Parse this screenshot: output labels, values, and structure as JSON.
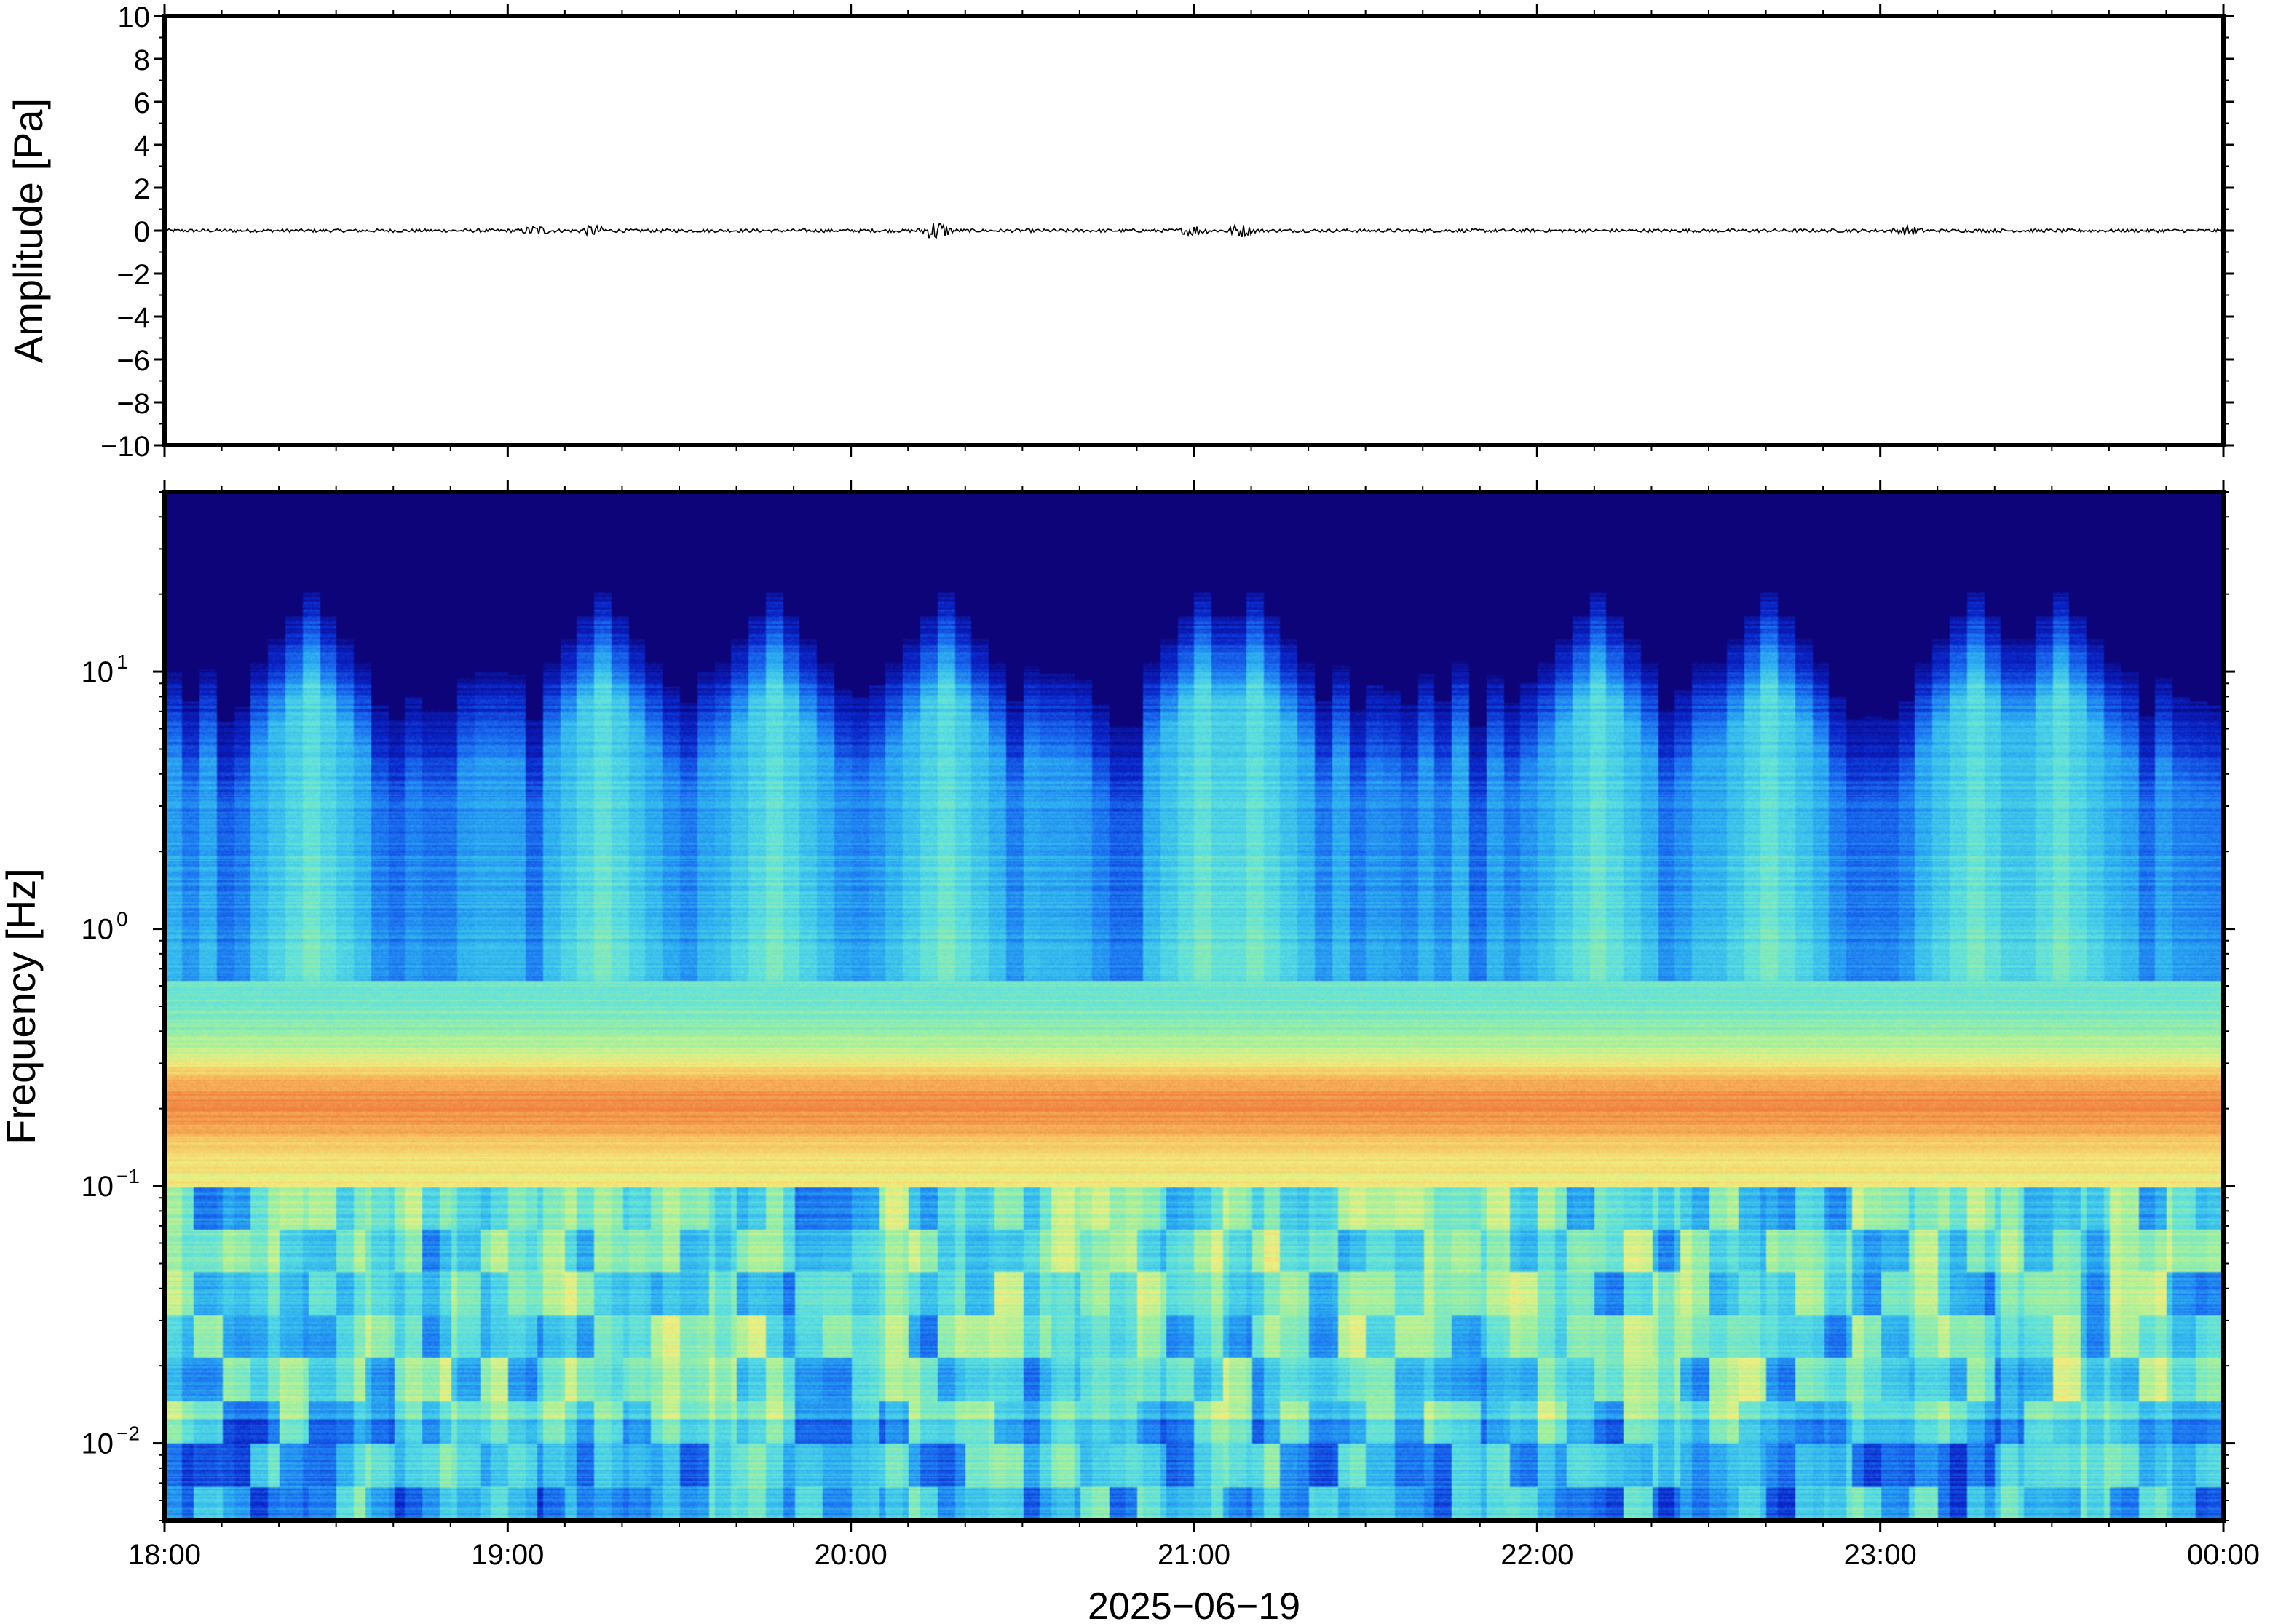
{
  "chart_data": [
    {
      "type": "line",
      "panel": "waveform",
      "ylabel": "Amplitude [Pa]",
      "ylim": [
        -10,
        10
      ],
      "yticks": [
        10,
        8,
        6,
        4,
        2,
        0,
        -2,
        -4,
        -6,
        -8,
        -10
      ],
      "ytick_labels": [
        "10",
        "8",
        "6",
        "4",
        "2",
        "0",
        "−2",
        "−4",
        "−6",
        "−8",
        "−10"
      ],
      "xlim": [
        "18:00",
        "00:00"
      ],
      "series": [
        {
          "values_description_free": true,
          "baseline": 0,
          "noise_amplitude": 0.08,
          "bursts": [
            {
              "time": "19:05",
              "amplitude": 0.2
            },
            {
              "time": "19:15",
              "amplitude": 0.2
            },
            {
              "time": "20:15",
              "amplitude": 0.45
            },
            {
              "time": "21:00",
              "amplitude": 0.2
            },
            {
              "time": "21:08",
              "amplitude": 0.25
            },
            {
              "time": "23:05",
              "amplitude": 0.15
            }
          ]
        }
      ],
      "line_color": "#000000"
    },
    {
      "type": "heatmap",
      "panel": "spectrogram",
      "ylabel": "Frequency [Hz]",
      "yscale": "log",
      "ylim": [
        0.005,
        50
      ],
      "yticks": [
        {
          "value": 10,
          "base": "10",
          "exp": "1"
        },
        {
          "value": 1,
          "base": "10",
          "exp": "0"
        },
        {
          "value": 0.1,
          "base": "10",
          "exp": "−1"
        },
        {
          "value": 0.01,
          "base": "10",
          "exp": "−2"
        }
      ],
      "xlabel": "2025−06−19",
      "xticks": [
        "18:00",
        "19:00",
        "20:00",
        "21:00",
        "22:00",
        "23:00",
        "00:00"
      ],
      "xlim": [
        "18:00",
        "00:00"
      ],
      "colormap": [
        "#0c0478",
        "#0a24c8",
        "#1a6ef0",
        "#2fb4f0",
        "#5ce0e0",
        "#a0f0a0",
        "#f0f080",
        "#f8c060",
        "#f08040"
      ],
      "microseism_band_hz": [
        0.15,
        0.3
      ],
      "high_energy_columns": [
        "18:25",
        "19:15",
        "19:45",
        "20:15",
        "21:00",
        "21:10",
        "22:10",
        "22:40",
        "23:15",
        "23:30"
      ]
    }
  ]
}
